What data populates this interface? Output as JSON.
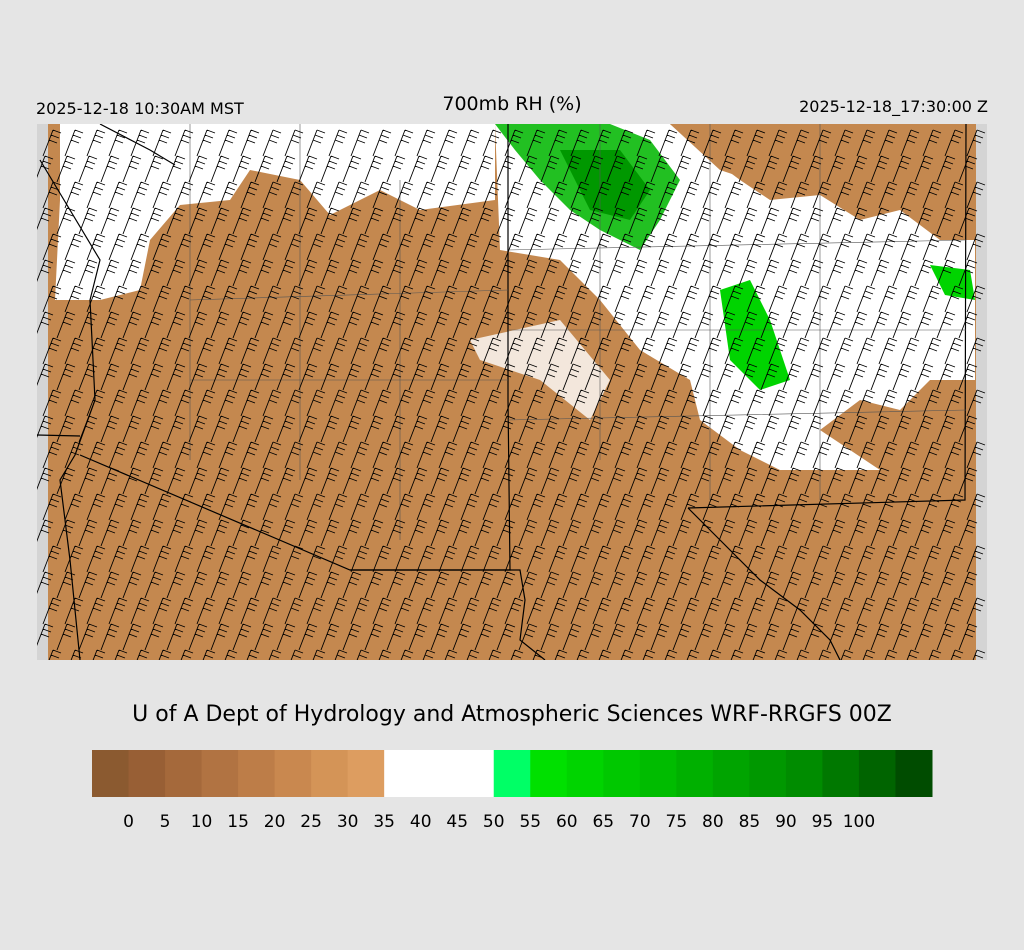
{
  "header": {
    "title": "700mb RH (%)",
    "local_time": "2025-12-18 10:30AM MST",
    "valid_time": "2025-12-18_17:30:00 Z"
  },
  "credit": "U of A Dept of Hydrology and Atmospheric Sciences WRF-RRGFS 00Z",
  "colorbar": {
    "colors": [
      "#8b5a30",
      "#985f35",
      "#a5693b",
      "#b17342",
      "#bd7d48",
      "#c9884f",
      "#d49457",
      "#dd9d60",
      "#ffffff",
      "#ffffff",
      "#ffffff",
      "#00ff66",
      "#00e000",
      "#00d400",
      "#00c800",
      "#00bc00",
      "#00b000",
      "#00a400",
      "#009800",
      "#008c00",
      "#007800",
      "#006400",
      "#004c00"
    ],
    "labels": [
      0,
      5,
      10,
      15,
      20,
      25,
      30,
      35,
      40,
      45,
      50,
      55,
      60,
      65,
      70,
      75,
      80,
      85,
      90,
      95,
      100
    ]
  }
}
